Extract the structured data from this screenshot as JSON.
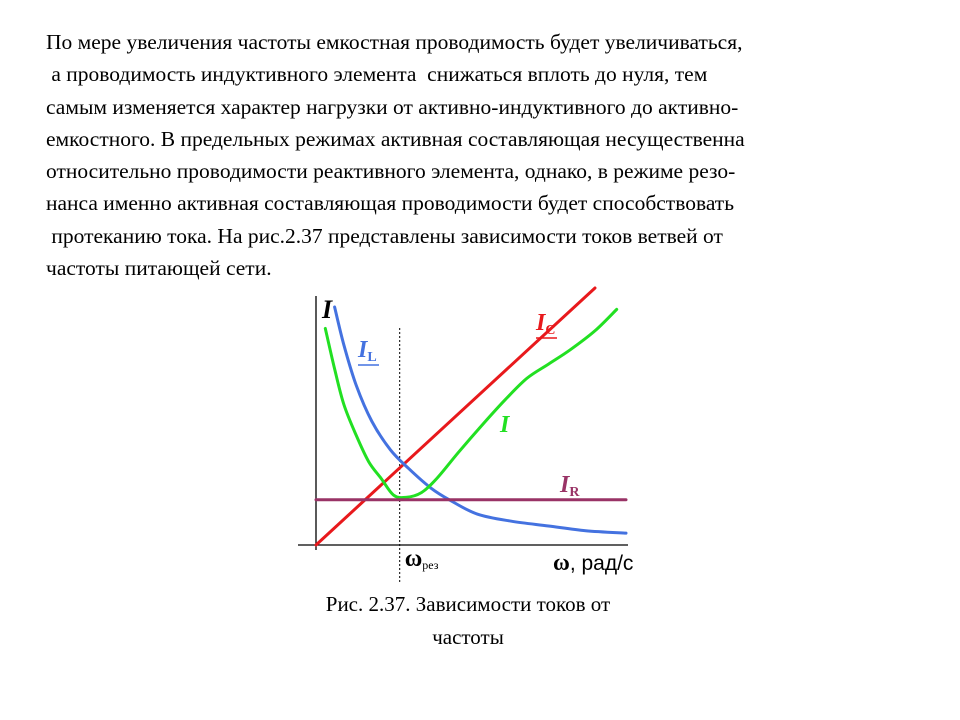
{
  "paragraph": {
    "lines": [
      "По мере увеличения частоты емкостная проводимость будет увеличиваться,",
      " а проводимость индуктивного элемента  снижаться вплоть до нуля, тем",
      "самым изменяется характер нагрузки от активно-индуктивного до активно-",
      "емкостного. В предельных режимах активная составляющая несущественна",
      "относительно проводимости реактивного элемента, однако, в режиме резо-",
      "нанса именно активная составляющая проводимости будет способствовать",
      " протеканию тока. На рис.2.37 представлены зависимости токов ветвей от",
      "частоты питающей сети."
    ]
  },
  "caption": {
    "line1": "Рис. 2.37. Зависимости токов от",
    "line2": "частоты"
  },
  "chart_data": {
    "type": "line",
    "title": "",
    "ylabel": "I",
    "xlabel_symbol": "ω",
    "xlabel_rest": ", рад/с",
    "resonance_label_main": "ω",
    "resonance_label_sub": "рез",
    "xlim": [
      0,
      10
    ],
    "ylim": [
      0,
      10
    ],
    "resonance_x": 2.7,
    "grid": false,
    "legend": "none",
    "series": [
      {
        "label_main": "I",
        "label_sub": "C",
        "color": "#e8191c",
        "underline": true,
        "points": [
          [
            0,
            0
          ],
          [
            9.0,
            10.8
          ]
        ]
      },
      {
        "label_main": "I",
        "label_sub": "L",
        "color": "#4472e0",
        "underline": true,
        "points": [
          [
            0.6,
            10.0
          ],
          [
            0.9,
            8.4
          ],
          [
            1.3,
            6.7
          ],
          [
            1.8,
            5.2
          ],
          [
            2.4,
            4.0
          ],
          [
            3.0,
            3.2
          ],
          [
            3.7,
            2.4
          ],
          [
            4.3,
            1.9
          ],
          [
            5.2,
            1.3
          ],
          [
            6.3,
            1.0
          ],
          [
            7.5,
            0.8
          ],
          [
            8.7,
            0.6
          ],
          [
            10.0,
            0.5
          ]
        ]
      },
      {
        "label_main": "I",
        "label_sub": "",
        "color": "#22e022",
        "underline": false,
        "points": [
          [
            0.3,
            9.1
          ],
          [
            0.6,
            7.4
          ],
          [
            0.9,
            5.9
          ],
          [
            1.3,
            4.6
          ],
          [
            1.7,
            3.5
          ],
          [
            2.1,
            2.8
          ],
          [
            2.5,
            2.1
          ],
          [
            2.9,
            2.0
          ],
          [
            3.4,
            2.2
          ],
          [
            3.9,
            2.8
          ],
          [
            4.6,
            3.9
          ],
          [
            5.4,
            5.1
          ],
          [
            6.1,
            6.1
          ],
          [
            6.8,
            7.0
          ],
          [
            7.5,
            7.6
          ],
          [
            8.2,
            8.2
          ],
          [
            9.0,
            9.0
          ],
          [
            9.7,
            9.9
          ]
        ]
      },
      {
        "label_main": "I",
        "label_sub": "R",
        "color": "#993366",
        "underline": true,
        "points": [
          [
            0,
            1.9
          ],
          [
            10.0,
            1.9
          ]
        ]
      }
    ]
  }
}
